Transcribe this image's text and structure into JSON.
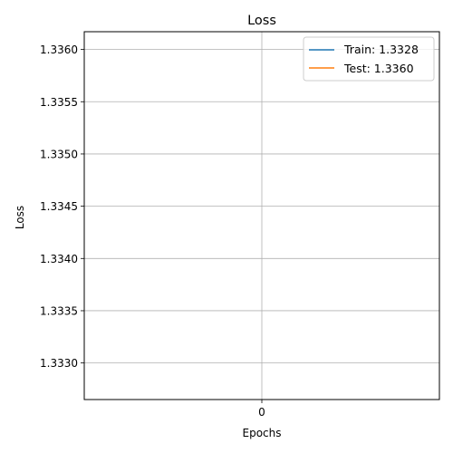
{
  "chart_data": {
    "type": "line",
    "title": "Loss",
    "xlabel": "Epochs",
    "ylabel": "Loss",
    "x": [
      0
    ],
    "x_ticks": [
      0
    ],
    "xlim": [
      -0.055,
      0.055
    ],
    "ylim": [
      1.33265,
      1.33617
    ],
    "y_ticks": [
      1.333,
      1.3335,
      1.334,
      1.3345,
      1.335,
      1.3355,
      1.336
    ],
    "y_tick_labels": [
      "1.3330",
      "1.3335",
      "1.3340",
      "1.3345",
      "1.3350",
      "1.3355",
      "1.3360"
    ],
    "grid": true,
    "legend_position": "top-right",
    "series": [
      {
        "name": "Train: 1.3328",
        "values": [
          1.3328
        ],
        "color": "#1f77b4"
      },
      {
        "name": "Test: 1.3360",
        "values": [
          1.336
        ],
        "color": "#ff7f0e"
      }
    ]
  }
}
